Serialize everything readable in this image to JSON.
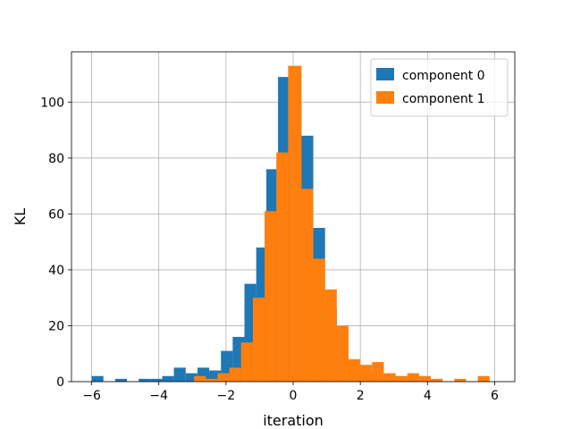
{
  "chart_data": {
    "type": "bar",
    "xlabel": "iteration",
    "ylabel": "KL",
    "xlim": [
      -6.6,
      6.6
    ],
    "ylim": [
      0,
      118
    ],
    "xticks": [
      -6,
      -4,
      -2,
      0,
      2,
      4,
      6
    ],
    "yticks": [
      0,
      20,
      40,
      60,
      80,
      100
    ],
    "grid": true,
    "legend_position": "top-right",
    "series": [
      {
        "name": "component 0",
        "color": "#1f77b4",
        "bins": [
          {
            "x0": -6.0,
            "x1": -5.65,
            "count": 2
          },
          {
            "x0": -5.3,
            "x1": -4.95,
            "count": 1
          },
          {
            "x0": -4.6,
            "x1": -4.25,
            "count": 1
          },
          {
            "x0": -4.25,
            "x1": -3.9,
            "count": 1
          },
          {
            "x0": -3.9,
            "x1": -3.55,
            "count": 2
          },
          {
            "x0": -3.55,
            "x1": -3.2,
            "count": 5
          },
          {
            "x0": -3.2,
            "x1": -2.85,
            "count": 3
          },
          {
            "x0": -2.85,
            "x1": -2.5,
            "count": 5
          },
          {
            "x0": -2.5,
            "x1": -2.15,
            "count": 4
          },
          {
            "x0": -2.15,
            "x1": -1.8,
            "count": 11
          },
          {
            "x0": -1.8,
            "x1": -1.45,
            "count": 16
          },
          {
            "x0": -1.45,
            "x1": -1.1,
            "count": 35
          },
          {
            "x0": -1.1,
            "x1": -0.8,
            "count": 48
          },
          {
            "x0": -0.8,
            "x1": -0.45,
            "count": 76
          },
          {
            "x0": -0.45,
            "x1": -0.1,
            "count": 109
          },
          {
            "x0": -0.1,
            "x1": 0.25,
            "count": 100
          },
          {
            "x0": 0.25,
            "x1": 0.6,
            "count": 88
          },
          {
            "x0": 0.6,
            "x1": 0.95,
            "count": 55
          },
          {
            "x0": 0.95,
            "x1": 1.3,
            "count": 26
          },
          {
            "x0": 1.3,
            "x1": 1.65,
            "count": 16
          },
          {
            "x0": 1.65,
            "x1": 2.0,
            "count": 6
          },
          {
            "x0": 2.0,
            "x1": 2.35,
            "count": 3
          },
          {
            "x0": 2.35,
            "x1": 2.7,
            "count": 2
          },
          {
            "x0": 2.7,
            "x1": 3.05,
            "count": 1
          },
          {
            "x0": 3.05,
            "x1": 3.4,
            "count": 1
          }
        ]
      },
      {
        "name": "component 1",
        "color": "#ff7f0e",
        "bins": [
          {
            "x0": -2.95,
            "x1": -2.6,
            "count": 2
          },
          {
            "x0": -2.6,
            "x1": -2.25,
            "count": 1
          },
          {
            "x0": -2.25,
            "x1": -1.9,
            "count": 3
          },
          {
            "x0": -1.9,
            "x1": -1.55,
            "count": 5
          },
          {
            "x0": -1.55,
            "x1": -1.2,
            "count": 14
          },
          {
            "x0": -1.2,
            "x1": -0.85,
            "count": 30
          },
          {
            "x0": -0.85,
            "x1": -0.5,
            "count": 61
          },
          {
            "x0": -0.5,
            "x1": -0.15,
            "count": 82
          },
          {
            "x0": -0.15,
            "x1": 0.25,
            "count": 113
          },
          {
            "x0": 0.25,
            "x1": 0.6,
            "count": 69
          },
          {
            "x0": 0.6,
            "x1": 0.95,
            "count": 44
          },
          {
            "x0": 0.95,
            "x1": 1.3,
            "count": 33
          },
          {
            "x0": 1.3,
            "x1": 1.65,
            "count": 20
          },
          {
            "x0": 1.65,
            "x1": 2.0,
            "count": 8
          },
          {
            "x0": 2.0,
            "x1": 2.35,
            "count": 6
          },
          {
            "x0": 2.35,
            "x1": 2.7,
            "count": 7
          },
          {
            "x0": 2.7,
            "x1": 3.05,
            "count": 3
          },
          {
            "x0": 3.05,
            "x1": 3.4,
            "count": 2
          },
          {
            "x0": 3.4,
            "x1": 3.75,
            "count": 3
          },
          {
            "x0": 3.75,
            "x1": 4.1,
            "count": 2
          },
          {
            "x0": 4.1,
            "x1": 4.45,
            "count": 1
          },
          {
            "x0": 4.8,
            "x1": 5.15,
            "count": 1
          },
          {
            "x0": 5.5,
            "x1": 5.85,
            "count": 2
          }
        ]
      }
    ]
  }
}
